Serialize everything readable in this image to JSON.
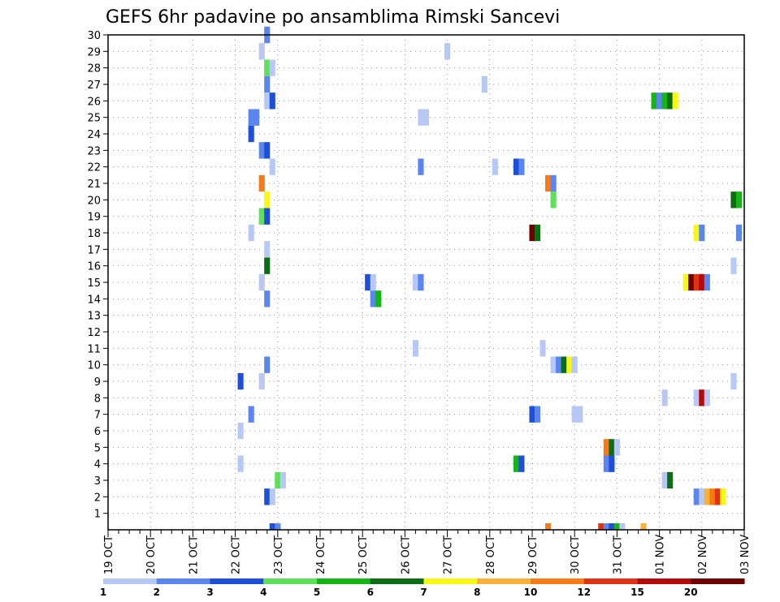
{
  "chart_data": {
    "type": "heatmap",
    "title": "GEFS 6hr padavine po ansamblima Rimski Sancevi",
    "x_tick_labels": [
      "19 OCT",
      "20 OCT",
      "21 OCT",
      "22 OCT",
      "23 OCT",
      "24 OCT",
      "25 OCT",
      "26 OCT",
      "27 OCT",
      "28 OCT",
      "29 OCT",
      "30 OCT",
      "31 OCT",
      "01 NOV",
      "02 NOV",
      "03 NOV"
    ],
    "y_tick_labels": [
      "1",
      "2",
      "3",
      "4",
      "5",
      "6",
      "7",
      "8",
      "9",
      "10",
      "11",
      "12",
      "13",
      "14",
      "15",
      "16",
      "17",
      "18",
      "19",
      "20",
      "21",
      "22",
      "23",
      "24",
      "25",
      "26",
      "27",
      "28",
      "29",
      "30"
    ],
    "xlim": [
      0,
      60
    ],
    "ylim": [
      0,
      30
    ],
    "grid": true,
    "colorbar_labels": [
      "1",
      "2",
      "3",
      "4",
      "5",
      "6",
      "7",
      "8",
      "10",
      "12",
      "15",
      "20"
    ],
    "colors": [
      "#b7c8f5",
      "#5b85ef",
      "#1e4fd9",
      "#5fe05b",
      "#14b514",
      "#0b6e14",
      "#f8f814",
      "#f8b23a",
      "#f87a14",
      "#e03214",
      "#b40a0a",
      "#6e0000"
    ],
    "cells": [
      [
        15,
        30,
        2
      ],
      [
        14.5,
        29,
        1
      ],
      [
        32,
        29,
        1
      ],
      [
        15,
        28,
        4
      ],
      [
        15.5,
        28,
        1
      ],
      [
        15,
        27,
        2
      ],
      [
        35.5,
        27,
        1
      ],
      [
        15,
        26,
        1
      ],
      [
        15.5,
        26,
        3
      ],
      [
        51.5,
        26,
        5
      ],
      [
        52,
        26,
        2
      ],
      [
        52.5,
        26,
        5
      ],
      [
        53,
        26,
        6
      ],
      [
        53.5,
        26,
        7
      ],
      [
        13.5,
        25,
        2
      ],
      [
        14,
        25,
        2
      ],
      [
        29.5,
        25,
        1
      ],
      [
        30,
        25,
        1
      ],
      [
        13.5,
        24,
        3
      ],
      [
        14.5,
        23,
        2
      ],
      [
        15,
        23,
        3
      ],
      [
        15.5,
        22,
        1
      ],
      [
        29.5,
        22,
        2
      ],
      [
        36.5,
        22,
        1
      ],
      [
        38.5,
        22,
        3
      ],
      [
        39,
        22,
        2
      ],
      [
        14.5,
        21,
        9
      ],
      [
        41.5,
        21,
        9
      ],
      [
        42,
        21,
        2
      ],
      [
        15,
        20,
        7
      ],
      [
        42,
        20,
        4
      ],
      [
        59,
        20,
        6
      ],
      [
        59.5,
        20,
        5
      ],
      [
        14.5,
        19,
        4
      ],
      [
        15,
        19,
        3
      ],
      [
        13.5,
        18,
        1
      ],
      [
        40,
        18,
        12
      ],
      [
        40.5,
        18,
        6
      ],
      [
        55.5,
        18,
        7
      ],
      [
        56,
        18,
        2
      ],
      [
        59.5,
        18,
        2
      ],
      [
        15,
        17,
        1
      ],
      [
        15,
        16,
        6
      ],
      [
        59,
        16,
        1
      ],
      [
        14.5,
        15,
        1
      ],
      [
        24.5,
        15,
        3
      ],
      [
        25,
        15,
        1
      ],
      [
        29,
        15,
        1
      ],
      [
        29.5,
        15,
        2
      ],
      [
        54.5,
        15,
        7
      ],
      [
        55,
        15,
        12
      ],
      [
        55.5,
        15,
        10
      ],
      [
        56,
        15,
        11
      ],
      [
        56.5,
        15,
        2
      ],
      [
        15,
        14,
        2
      ],
      [
        25,
        14,
        2
      ],
      [
        25.5,
        14,
        5
      ],
      [
        29,
        11,
        1
      ],
      [
        41,
        11,
        1
      ],
      [
        15,
        10,
        2
      ],
      [
        42,
        10,
        1
      ],
      [
        42.5,
        10,
        2
      ],
      [
        43,
        10,
        6
      ],
      [
        43.5,
        10,
        7
      ],
      [
        44,
        10,
        1
      ],
      [
        12.5,
        9,
        3
      ],
      [
        14.5,
        9,
        1
      ],
      [
        59,
        9,
        1
      ],
      [
        52.5,
        8,
        1
      ],
      [
        55.5,
        8,
        1
      ],
      [
        56,
        8,
        11
      ],
      [
        56.5,
        8,
        1
      ],
      [
        13.5,
        7,
        2
      ],
      [
        40,
        7,
        3
      ],
      [
        40.5,
        7,
        2
      ],
      [
        44,
        7,
        1
      ],
      [
        44.5,
        7,
        1
      ],
      [
        12.5,
        6,
        1
      ],
      [
        47,
        5,
        9
      ],
      [
        47.5,
        5,
        6
      ],
      [
        48,
        5,
        1
      ],
      [
        12.5,
        4,
        1
      ],
      [
        38.5,
        4,
        5
      ],
      [
        39,
        4,
        3
      ],
      [
        47,
        4,
        2
      ],
      [
        47.5,
        4,
        3
      ],
      [
        16,
        3,
        4
      ],
      [
        16.5,
        3,
        1
      ],
      [
        52.5,
        3,
        1
      ],
      [
        53,
        3,
        6
      ],
      [
        15,
        2,
        3
      ],
      [
        15.5,
        2,
        1
      ],
      [
        55.5,
        2,
        2
      ],
      [
        56,
        2,
        1
      ],
      [
        56.5,
        2,
        8
      ],
      [
        57,
        2,
        9
      ],
      [
        57.5,
        2,
        10
      ],
      [
        58,
        2,
        7
      ]
    ],
    "bottom_strip": [
      [
        15.5,
        3
      ],
      [
        16,
        2
      ],
      [
        41.5,
        9
      ],
      [
        46.5,
        10
      ],
      [
        47,
        2
      ],
      [
        47.5,
        3
      ],
      [
        48,
        5
      ],
      [
        48.5,
        1
      ],
      [
        50.5,
        8
      ]
    ]
  }
}
